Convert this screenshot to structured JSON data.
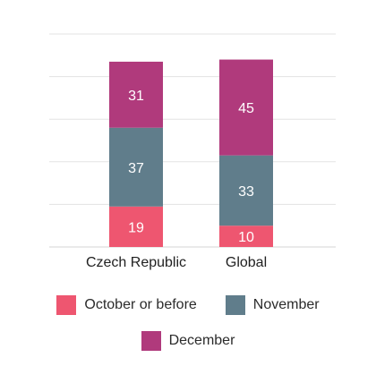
{
  "chart_data": {
    "type": "bar",
    "stacked": true,
    "categories": [
      "Czech Republic",
      "Global"
    ],
    "series": [
      {
        "name": "October or before",
        "values": [
          19,
          10
        ],
        "color": "#ee5670"
      },
      {
        "name": "November",
        "values": [
          37,
          33
        ],
        "color": "#607d8b"
      },
      {
        "name": "December",
        "values": [
          31,
          45
        ],
        "color": "#b03a7c"
      }
    ],
    "ylim": [
      0,
      100
    ],
    "grid": true,
    "legend_position": "bottom",
    "value_label_color": "#ffffff"
  }
}
